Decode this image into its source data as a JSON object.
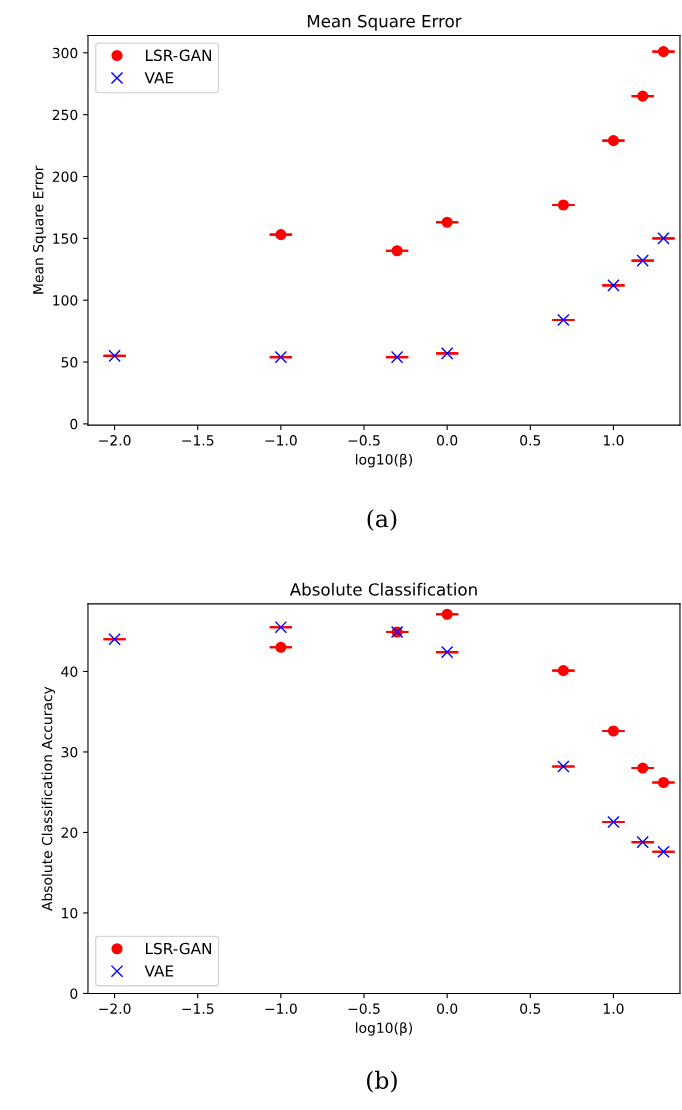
{
  "chart_data": [
    {
      "type": "scatter",
      "title": "Mean Square Error",
      "xlabel": "log10(β)",
      "ylabel": "Mean Square Error",
      "x": [
        -2,
        -1,
        -0.301,
        0,
        0.699,
        1,
        1.176,
        1.301
      ],
      "series": [
        {
          "name": "LSR-GAN",
          "color": "#ff0000",
          "marker": "circle",
          "values": [
            null,
            153,
            140,
            163,
            177,
            229,
            265,
            301
          ],
          "errors": [
            null,
            0,
            0,
            0,
            0,
            0,
            0,
            0
          ]
        },
        {
          "name": "VAE",
          "color": "#0000ff",
          "marker": "cross",
          "values": [
            55,
            54,
            54,
            57,
            84,
            112,
            132,
            150
          ],
          "errors": [
            0,
            0,
            0,
            0,
            0,
            0,
            0,
            0
          ]
        }
      ],
      "xlim": [
        -2.16,
        1.4
      ],
      "xticks": [
        {
          "value": -2,
          "label": "−2.0"
        },
        {
          "value": -1.5,
          "label": "−1.5"
        },
        {
          "value": -1,
          "label": "−1.0"
        },
        {
          "value": -0.5,
          "label": "−0.5"
        },
        {
          "value": 0,
          "label": "0.0"
        },
        {
          "value": 0.5,
          "label": "0.5"
        },
        {
          "value": 1,
          "label": "1.0"
        }
      ],
      "ylim": [
        -1,
        314
      ],
      "yticks": [
        0,
        50,
        100,
        150,
        200,
        250,
        300
      ],
      "grid": false,
      "legend": "top left",
      "annotations": [
        "(a)"
      ]
    },
    {
      "type": "scatter",
      "title": "Absolute Classification",
      "xlabel": "log10(β)",
      "ylabel": "Absolute Classification Accuracy",
      "x": [
        -2,
        -1,
        -0.301,
        0,
        0.699,
        1,
        1.176,
        1.301
      ],
      "series": [
        {
          "name": "LSR-GAN",
          "color": "#ff0000",
          "marker": "circle",
          "values": [
            null,
            43.0,
            44.9,
            47.1,
            40.1,
            32.6,
            28.0,
            26.2
          ],
          "errors": [
            null,
            0,
            0,
            0,
            0,
            0,
            0,
            0
          ]
        },
        {
          "name": "VAE",
          "color": "#0000ff",
          "marker": "cross",
          "values": [
            44.0,
            45.5,
            44.9,
            42.4,
            28.2,
            21.3,
            18.8,
            17.6
          ],
          "errors": [
            0,
            0,
            0,
            0,
            0,
            0,
            0,
            0
          ]
        }
      ],
      "xlim": [
        -2.16,
        1.4
      ],
      "xticks": [
        {
          "value": -2,
          "label": "−2.0"
        },
        {
          "value": -1.5,
          "label": "−1.5"
        },
        {
          "value": -1,
          "label": "−1.0"
        },
        {
          "value": -0.5,
          "label": "−0.5"
        },
        {
          "value": 0,
          "label": "0.0"
        },
        {
          "value": 0.5,
          "label": "0.5"
        },
        {
          "value": 1,
          "label": "1.0"
        }
      ],
      "ylim": [
        0,
        48.4
      ],
      "yticks": [
        0,
        10,
        20,
        30,
        40
      ],
      "grid": false,
      "legend": "bottom left",
      "annotations": [
        "(b)"
      ]
    }
  ]
}
